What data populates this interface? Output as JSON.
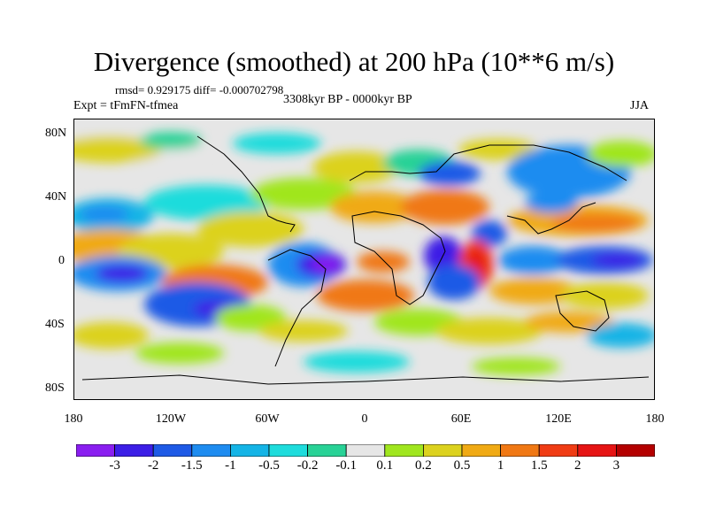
{
  "title": "Divergence (smoothed) at 200 hPa (10**6 m/s)",
  "stats_text": "rmsd= 0.929175 diff= -0.000702798",
  "experiment": "Expt = tFmFN-tfmea",
  "period": "3308kyr BP - 0000kyr BP",
  "season": "JJA",
  "map": {
    "lat_labels": [
      "80N",
      "40N",
      "0",
      "40S",
      "80S"
    ],
    "lon_labels": [
      "180",
      "120W",
      "60W",
      "0",
      "60E",
      "120E",
      "180"
    ]
  },
  "colorbar": {
    "levels": [
      "-3",
      "-2",
      "-1.5",
      "-1",
      "-0.5",
      "-0.2",
      "-0.1",
      "0.1",
      "0.2",
      "0.5",
      "1",
      "1.5",
      "2",
      "3"
    ],
    "colors": [
      "#8a1ef0",
      "#3c1ee6",
      "#1e5ae6",
      "#1e8cf0",
      "#14b4e6",
      "#1edcdc",
      "#28d296",
      "#e6e6e6",
      "#a0e61e",
      "#dcd21e",
      "#f0aa14",
      "#f07814",
      "#f03c14",
      "#e61414",
      "#b40000"
    ]
  }
}
